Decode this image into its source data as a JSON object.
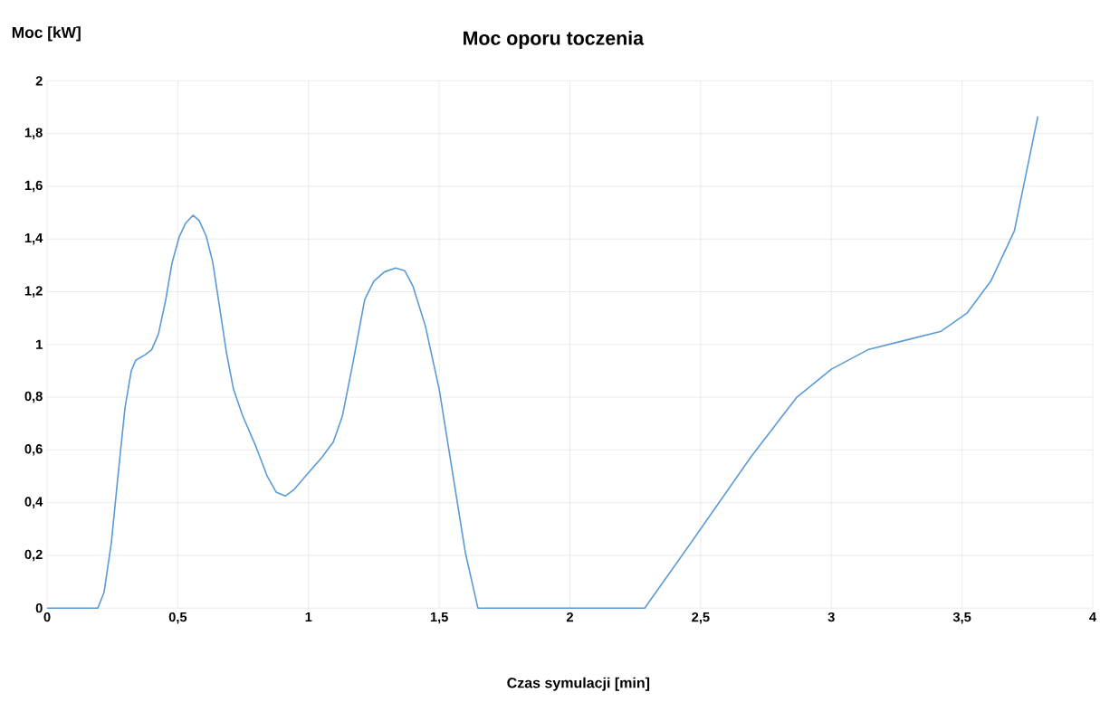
{
  "chart_data": {
    "type": "line",
    "title": "Moc oporu toczenia",
    "xlabel": "Czas symulacji [min]",
    "ylabel": "Moc [kW]",
    "x": [
      0,
      0.194,
      0.218,
      0.246,
      0.27,
      0.298,
      0.322,
      0.339,
      0.374,
      0.4,
      0.426,
      0.454,
      0.478,
      0.506,
      0.53,
      0.558,
      0.582,
      0.609,
      0.634,
      0.66,
      0.686,
      0.713,
      0.748,
      0.8,
      0.842,
      0.876,
      0.911,
      0.945,
      0.997,
      1.05,
      1.095,
      1.13,
      1.17,
      1.215,
      1.25,
      1.29,
      1.333,
      1.368,
      1.4,
      1.447,
      1.5,
      1.55,
      1.6,
      1.648,
      2.286,
      2.486,
      2.69,
      2.868,
      3.0,
      3.14,
      3.28,
      3.42,
      3.52,
      3.61,
      3.7,
      3.79
    ],
    "series": [
      {
        "color": "#5b9bd5",
        "values": [
          0,
          0,
          0.06,
          0.25,
          0.49,
          0.76,
          0.9,
          0.94,
          0.96,
          0.98,
          1.04,
          1.17,
          1.31,
          1.41,
          1.46,
          1.49,
          1.47,
          1.41,
          1.31,
          1.14,
          0.97,
          0.83,
          0.73,
          0.61,
          0.5,
          0.44,
          0.425,
          0.45,
          0.51,
          0.57,
          0.63,
          0.73,
          0.93,
          1.17,
          1.24,
          1.275,
          1.29,
          1.28,
          1.22,
          1.07,
          0.83,
          0.52,
          0.21,
          0,
          0,
          0.28,
          0.57,
          0.8,
          0.906,
          0.98,
          1.015,
          1.05,
          1.12,
          1.24,
          1.43,
          1.865
        ]
      }
    ],
    "xlim": [
      0,
      4
    ],
    "ylim": [
      0,
      2
    ],
    "xticks": [
      0,
      {
        "value": 0.5,
        "label": "0,5"
      },
      1,
      {
        "value": 1.5,
        "label": "1,5"
      },
      2,
      {
        "value": 2.5,
        "label": "2,5"
      },
      3,
      {
        "value": 3.5,
        "label": "3,5"
      },
      4
    ],
    "yticks": [
      0,
      {
        "value": 0.2,
        "label": "0,2"
      },
      {
        "value": 0.4,
        "label": "0,4"
      },
      {
        "value": 0.6,
        "label": "0,6"
      },
      {
        "value": 0.8,
        "label": "0,8"
      },
      1,
      {
        "value": 1.2,
        "label": "1,2"
      },
      {
        "value": 1.4,
        "label": "1,4"
      },
      {
        "value": 1.6,
        "label": "1,6"
      },
      {
        "value": 1.8,
        "label": "1,8"
      },
      2
    ],
    "grid": true,
    "marker": "none",
    "line_style": "solid"
  }
}
